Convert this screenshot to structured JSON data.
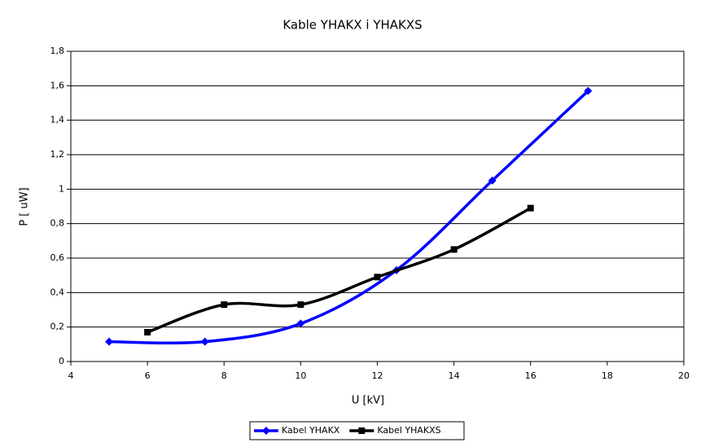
{
  "chart_data": {
    "type": "line",
    "title": "Kable YHAKX i YHAKXS",
    "x_label": "U  [kV]",
    "y_label": "P  [ uW]",
    "series": [
      {
        "name": "Kabel YHAKX",
        "color": "#0000ff",
        "marker": "diamond",
        "x": [
          5,
          7.5,
          10,
          12.5,
          15,
          17.5
        ],
        "values": [
          0.115,
          0.115,
          0.22,
          0.53,
          1.05,
          1.57
        ]
      },
      {
        "name": "Kabel YHAKXS",
        "color": "#000000",
        "marker": "square",
        "x": [
          6,
          8,
          10,
          12,
          14,
          16
        ],
        "values": [
          0.17,
          0.33,
          0.33,
          0.49,
          0.65,
          0.89
        ]
      }
    ],
    "xlim": [
      4,
      20
    ],
    "xticks": [
      4,
      6,
      8,
      10,
      12,
      14,
      16,
      18,
      20
    ],
    "ylim": [
      0,
      1.8
    ],
    "yticks": [
      0,
      {
        "value": 0.2,
        "label": "0,2"
      },
      {
        "value": 0.4,
        "label": "0,4"
      },
      {
        "value": 0.6,
        "label": "0,6"
      },
      {
        "value": 0.8,
        "label": "0,8"
      },
      1,
      {
        "value": 1.2,
        "label": "1,2"
      },
      {
        "value": 1.4,
        "label": "1,4"
      },
      {
        "value": 1.6,
        "label": "1,6"
      },
      {
        "value": 1.8,
        "label": "1,8"
      }
    ],
    "grid": true,
    "legend": "bottom",
    "smooth": true
  }
}
